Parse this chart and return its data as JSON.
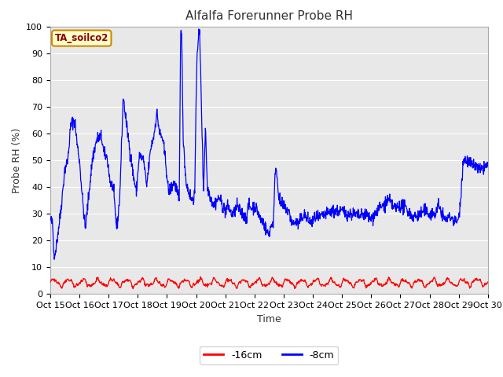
{
  "title": "Alfalfa Forerunner Probe RH",
  "ylabel": "Probe RH (%)",
  "xlabel": "Time",
  "ylim": [
    0,
    100
  ],
  "figure_bg_color": "#ffffff",
  "plot_bg_color": "#e8e8e8",
  "annotation_text": "TA_soilco2",
  "annotation_bg": "#ffffcc",
  "annotation_border": "#cc8800",
  "xtick_labels": [
    "Oct 15",
    "Oct 16",
    "Oct 17",
    "Oct 18",
    "Oct 19",
    "Oct 20",
    "Oct 21",
    "Oct 22",
    "Oct 23",
    "Oct 24",
    "Oct 25",
    "Oct 26",
    "Oct 27",
    "Oct 28",
    "Oct 29",
    "Oct 30"
  ],
  "line_red_color": "#ff0000",
  "line_blue_color": "#0000ff",
  "legend_red_label": "-16cm",
  "legend_blue_label": "-8cm",
  "title_fontsize": 11,
  "axis_label_fontsize": 9,
  "tick_fontsize": 8,
  "grid_color": "#ffffff",
  "spine_color": "#aaaaaa"
}
